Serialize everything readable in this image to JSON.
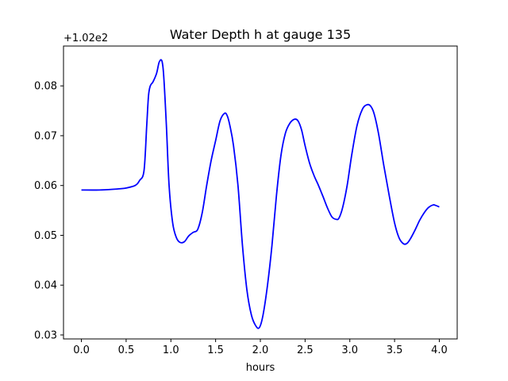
{
  "chart_data": {
    "type": "line",
    "title": "Water Depth h at gauge 135",
    "xlabel": "hours",
    "ylabel": "",
    "y_offset_label": "+1.02e2",
    "y_offset": 102,
    "xlim": [
      -0.2,
      4.2
    ],
    "ylim": [
      0.0292,
      0.088
    ],
    "x_ticks": [
      0.0,
      0.5,
      1.0,
      1.5,
      2.0,
      2.5,
      3.0,
      3.5,
      4.0
    ],
    "x_tick_labels": [
      "0.0",
      "0.5",
      "1.0",
      "1.5",
      "2.0",
      "2.5",
      "3.0",
      "3.5",
      "4.0"
    ],
    "y_ticks": [
      0.03,
      0.04,
      0.05,
      0.06,
      0.07,
      0.08
    ],
    "y_tick_labels": [
      "0.03",
      "0.04",
      "0.05",
      "0.06",
      "0.07",
      "0.08"
    ],
    "grid": false,
    "series": [
      {
        "color": "#0000ff",
        "x": [
          0.0,
          0.2,
          0.4,
          0.5,
          0.6,
          0.65,
          0.7,
          0.73,
          0.75,
          0.77,
          0.8,
          0.84,
          0.87,
          0.9,
          0.92,
          0.95,
          0.98,
          1.02,
          1.06,
          1.1,
          1.15,
          1.2,
          1.25,
          1.3,
          1.35,
          1.4,
          1.45,
          1.5,
          1.55,
          1.6,
          1.63,
          1.66,
          1.7,
          1.75,
          1.8,
          1.85,
          1.9,
          1.95,
          1.99,
          2.03,
          2.08,
          2.13,
          2.18,
          2.23,
          2.28,
          2.33,
          2.38,
          2.42,
          2.46,
          2.5,
          2.55,
          2.6,
          2.65,
          2.7,
          2.75,
          2.8,
          2.85,
          2.88,
          2.92,
          2.97,
          3.02,
          3.08,
          3.14,
          3.19,
          3.23,
          3.27,
          3.32,
          3.38,
          3.44,
          3.5,
          3.55,
          3.6,
          3.64,
          3.68,
          3.73,
          3.78,
          3.83,
          3.88,
          3.93,
          3.96,
          4.0
        ],
        "values": [
          0.0591,
          0.0591,
          0.0593,
          0.0595,
          0.06,
          0.061,
          0.063,
          0.072,
          0.078,
          0.08,
          0.0808,
          0.0825,
          0.0848,
          0.085,
          0.082,
          0.072,
          0.06,
          0.0525,
          0.0496,
          0.0486,
          0.0487,
          0.0499,
          0.0506,
          0.0512,
          0.0545,
          0.06,
          0.065,
          0.069,
          0.073,
          0.0745,
          0.074,
          0.072,
          0.068,
          0.06,
          0.048,
          0.039,
          0.034,
          0.0318,
          0.0315,
          0.034,
          0.04,
          0.048,
          0.058,
          0.066,
          0.0705,
          0.0725,
          0.0733,
          0.073,
          0.0712,
          0.068,
          0.0645,
          0.062,
          0.06,
          0.0578,
          0.0555,
          0.0537,
          0.0532,
          0.0535,
          0.0556,
          0.06,
          0.066,
          0.072,
          0.0753,
          0.0762,
          0.076,
          0.0745,
          0.0705,
          0.064,
          0.058,
          0.0525,
          0.0495,
          0.0483,
          0.0484,
          0.0494,
          0.0511,
          0.053,
          0.0545,
          0.0556,
          0.0561,
          0.056,
          0.0557
        ]
      }
    ]
  }
}
